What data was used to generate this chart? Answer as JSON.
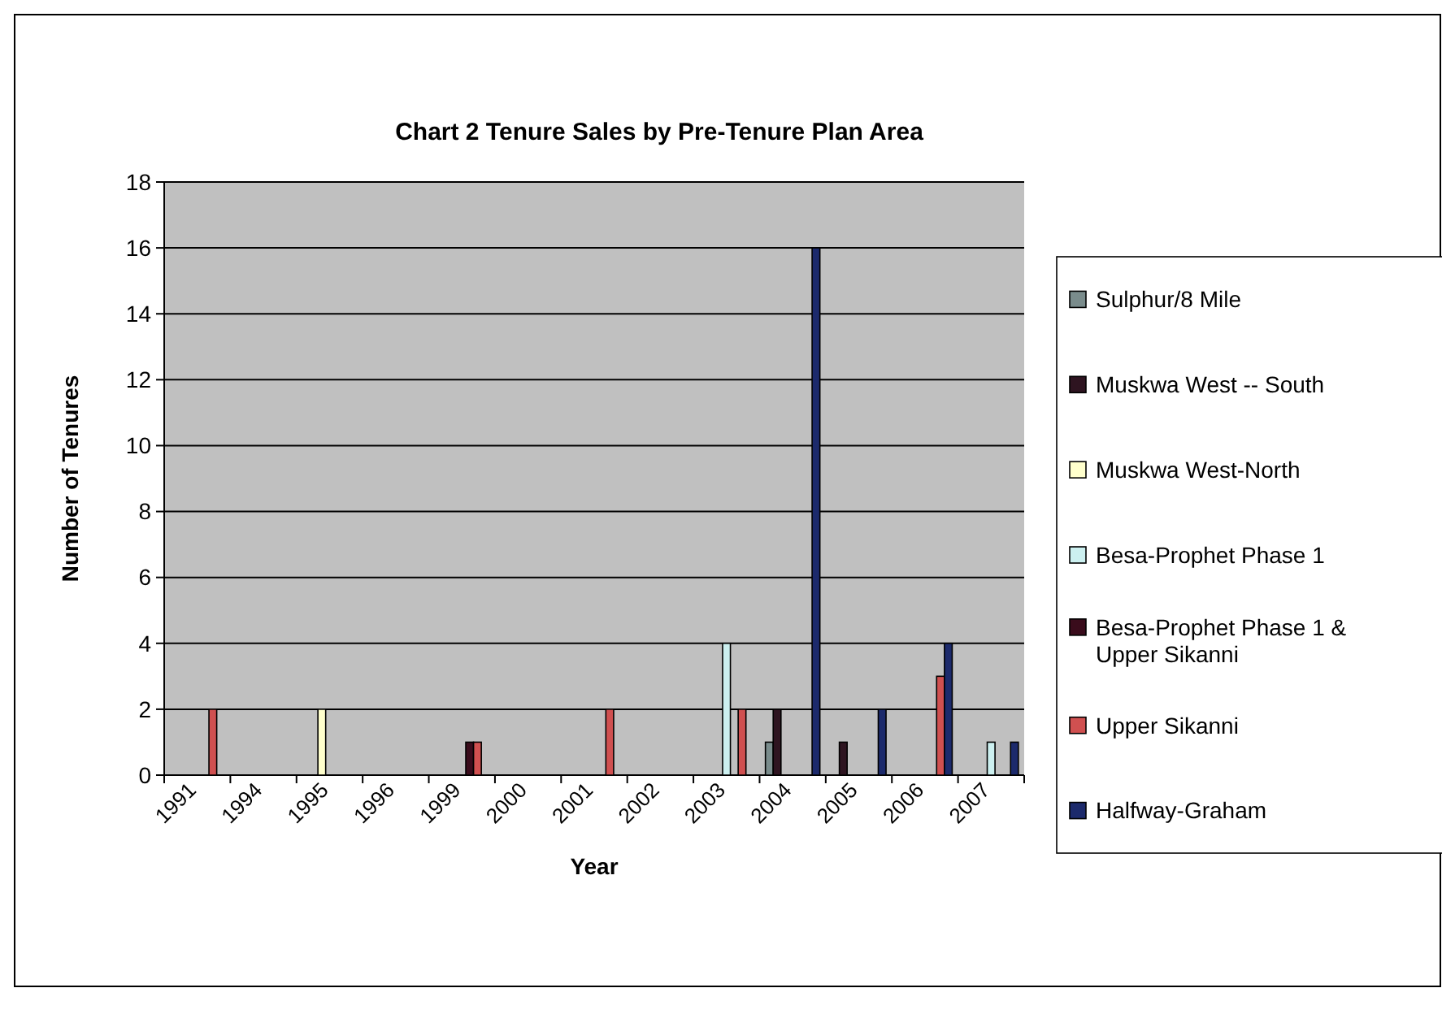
{
  "chart_data": {
    "type": "bar",
    "title": "Chart 2 Tenure Sales by Pre-Tenure Plan Area",
    "xlabel": "Year",
    "ylabel": "Number of Tenures",
    "categories": [
      "1991",
      "1994",
      "1995",
      "1996",
      "1999",
      "2000",
      "2001",
      "2002",
      "2003",
      "2004",
      "2005",
      "2006",
      "2007"
    ],
    "series": [
      {
        "name": "Sulphur/8 Mile",
        "color": "#7a8c8c",
        "values": [
          null,
          null,
          null,
          null,
          null,
          null,
          null,
          null,
          null,
          1,
          null,
          null,
          null
        ]
      },
      {
        "name": "Muskwa West -- South",
        "color": "#2e1420",
        "values": [
          null,
          null,
          null,
          null,
          null,
          null,
          null,
          null,
          null,
          2,
          1,
          null,
          null
        ]
      },
      {
        "name": "Muskwa West-North",
        "color": "#ffffcc",
        "values": [
          null,
          null,
          2,
          null,
          null,
          null,
          null,
          null,
          null,
          null,
          null,
          null,
          null
        ]
      },
      {
        "name": "Besa-Prophet Phase 1",
        "color": "#ccf0f0",
        "values": [
          null,
          null,
          null,
          null,
          null,
          null,
          null,
          null,
          4,
          null,
          null,
          null,
          1
        ]
      },
      {
        "name": "Besa-Prophet Phase 1 & Upper Sikanni",
        "color": "#3a0c1c",
        "values": [
          null,
          null,
          null,
          null,
          1,
          null,
          null,
          null,
          null,
          null,
          null,
          null,
          null
        ]
      },
      {
        "name": "Upper Sikanni",
        "color": "#d05050",
        "values": [
          2,
          null,
          null,
          null,
          1,
          null,
          2,
          null,
          2,
          null,
          null,
          3,
          null
        ]
      },
      {
        "name": "Halfway-Graham",
        "color": "#1c2a6c",
        "values": [
          null,
          null,
          null,
          null,
          null,
          null,
          null,
          null,
          null,
          16,
          2,
          4,
          1
        ]
      }
    ],
    "ylim": [
      0,
      18
    ],
    "yticks": [
      0,
      2,
      4,
      6,
      8,
      10,
      12,
      14,
      16,
      18
    ],
    "grid": "y",
    "legend": "right"
  }
}
